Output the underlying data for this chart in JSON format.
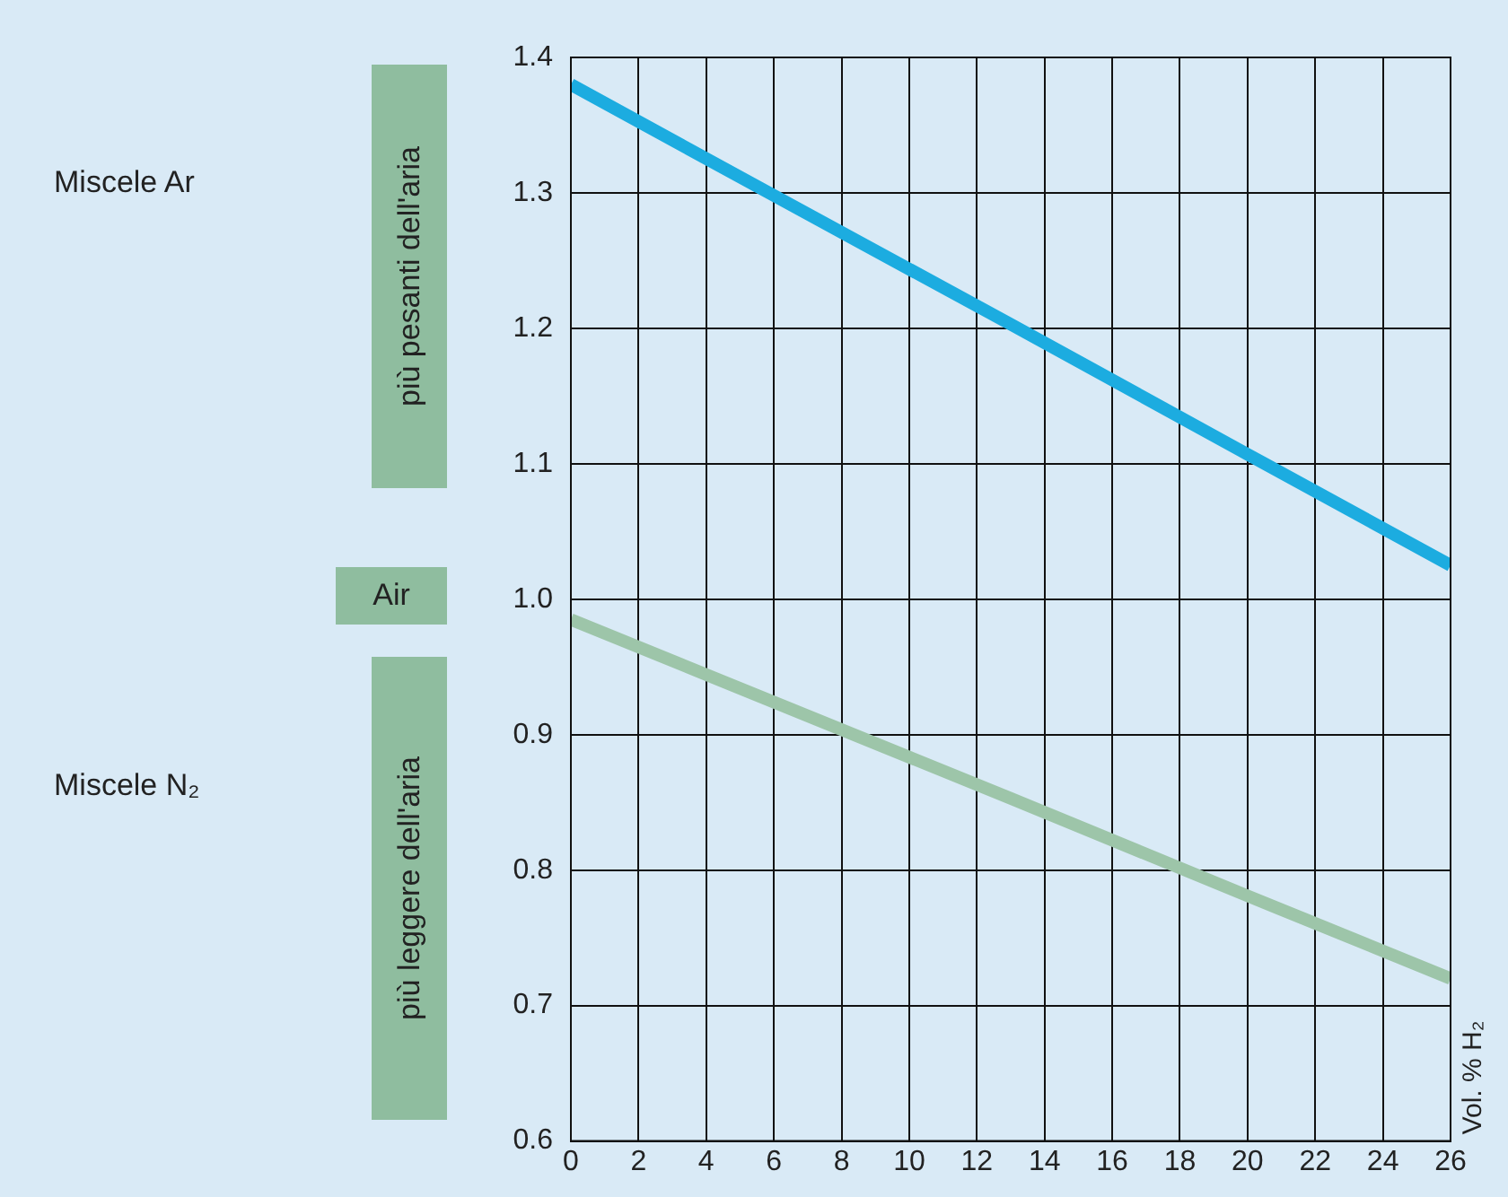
{
  "chart_data": {
    "type": "line",
    "x": [
      0,
      6,
      13,
      20,
      26
    ],
    "series": [
      {
        "color": "#1cace0",
        "values": [
          1.38,
          1.298,
          1.203,
          1.107,
          1.025
        ]
      },
      {
        "color": "#9dc5a9",
        "values": [
          0.985,
          0.924,
          0.853,
          0.781,
          0.72
        ]
      }
    ],
    "xlim": [
      0,
      26
    ],
    "xticks": [
      0,
      2,
      4,
      6,
      8,
      10,
      12,
      14,
      16,
      18,
      20,
      22,
      24,
      26
    ],
    "ylim": [
      0.6,
      1.4
    ],
    "yticks": [
      0.6,
      0.7,
      0.8,
      0.9,
      {
        "value": 1,
        "label": "1.0"
      },
      1.1,
      1.2,
      1.3,
      1.4
    ],
    "grid": true,
    "legend": false,
    "annotations": [
      "Miscele Ar",
      "Miscele N₂",
      "più pesanti dell'aria",
      "Air",
      "più leggere dell'aria",
      "Vol. % H₂"
    ]
  }
}
